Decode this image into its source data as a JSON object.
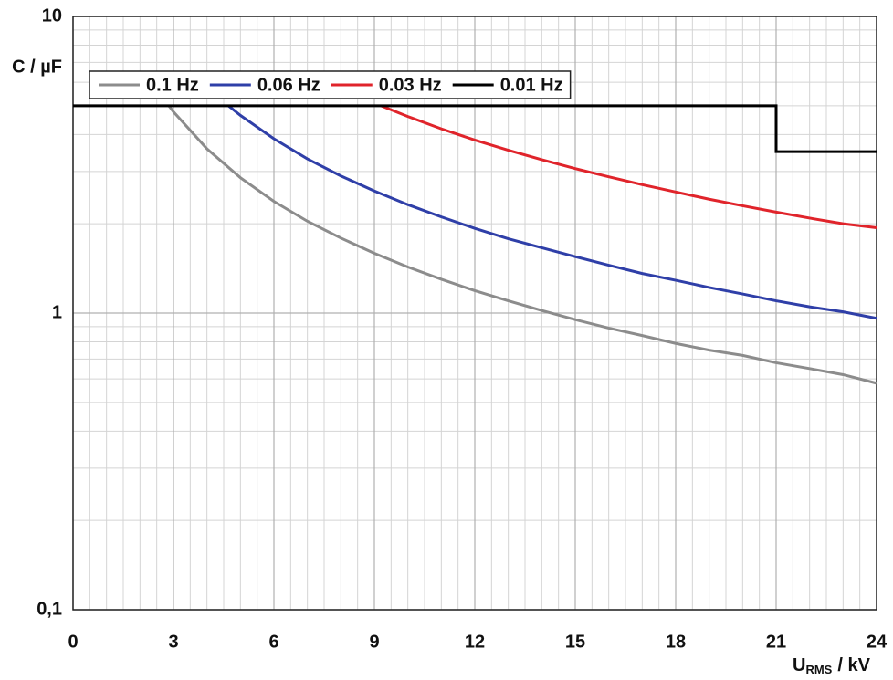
{
  "chart_data": {
    "type": "line",
    "ylabel": "C / µF",
    "xlabel": {
      "main": "U",
      "sub": "RMS",
      "unit": "/ kV"
    },
    "xlim": [
      0,
      24
    ],
    "xticks": [
      0,
      3,
      6,
      9,
      12,
      15,
      18,
      21,
      24
    ],
    "ylim": [
      0.1,
      10
    ],
    "yticks": [
      {
        "value": 0.1,
        "label": "0,1"
      },
      1,
      10
    ],
    "log_y": true,
    "grid": true,
    "legend": "top-left",
    "series": [
      {
        "name": "0.1 Hz",
        "color": "#8c8c8c",
        "x": [
          2.86,
          3,
          4,
          5,
          6,
          7,
          8,
          9,
          10,
          11,
          12,
          13,
          14,
          15,
          16,
          17,
          18,
          19,
          20,
          21,
          22,
          23,
          24
        ],
        "values": [
          5,
          4.77,
          3.58,
          2.86,
          2.38,
          2.04,
          1.79,
          1.59,
          1.43,
          1.3,
          1.19,
          1.1,
          1.02,
          0.95,
          0.89,
          0.84,
          0.79,
          0.75,
          0.72,
          0.68,
          0.65,
          0.62,
          0.58
        ]
      },
      {
        "name": "0.06 Hz",
        "color": "#2f3fa8",
        "x": [
          4.64,
          5,
          6,
          7,
          8,
          9,
          10,
          11,
          12,
          13,
          14,
          15,
          16,
          17,
          18,
          19,
          20,
          21,
          22,
          23,
          24
        ],
        "values": [
          5,
          4.64,
          3.87,
          3.31,
          2.9,
          2.58,
          2.32,
          2.11,
          1.93,
          1.78,
          1.66,
          1.55,
          1.45,
          1.36,
          1.29,
          1.22,
          1.16,
          1.1,
          1.05,
          1.01,
          0.96
        ]
      },
      {
        "name": "0.03 Hz",
        "color": "#e0242b",
        "x": [
          9.2,
          10,
          11,
          12,
          13,
          14,
          15,
          16,
          17,
          18,
          19,
          20,
          21,
          22,
          23,
          24
        ],
        "values": [
          5,
          4.6,
          4.18,
          3.83,
          3.54,
          3.29,
          3.07,
          2.88,
          2.71,
          2.56,
          2.42,
          2.3,
          2.19,
          2.09,
          2.0,
          1.94
        ]
      },
      {
        "name": "0.01 Hz",
        "color": "#000000",
        "x": [
          0,
          21,
          21,
          24
        ],
        "values": [
          5,
          5,
          3.5,
          3.5
        ]
      }
    ]
  }
}
